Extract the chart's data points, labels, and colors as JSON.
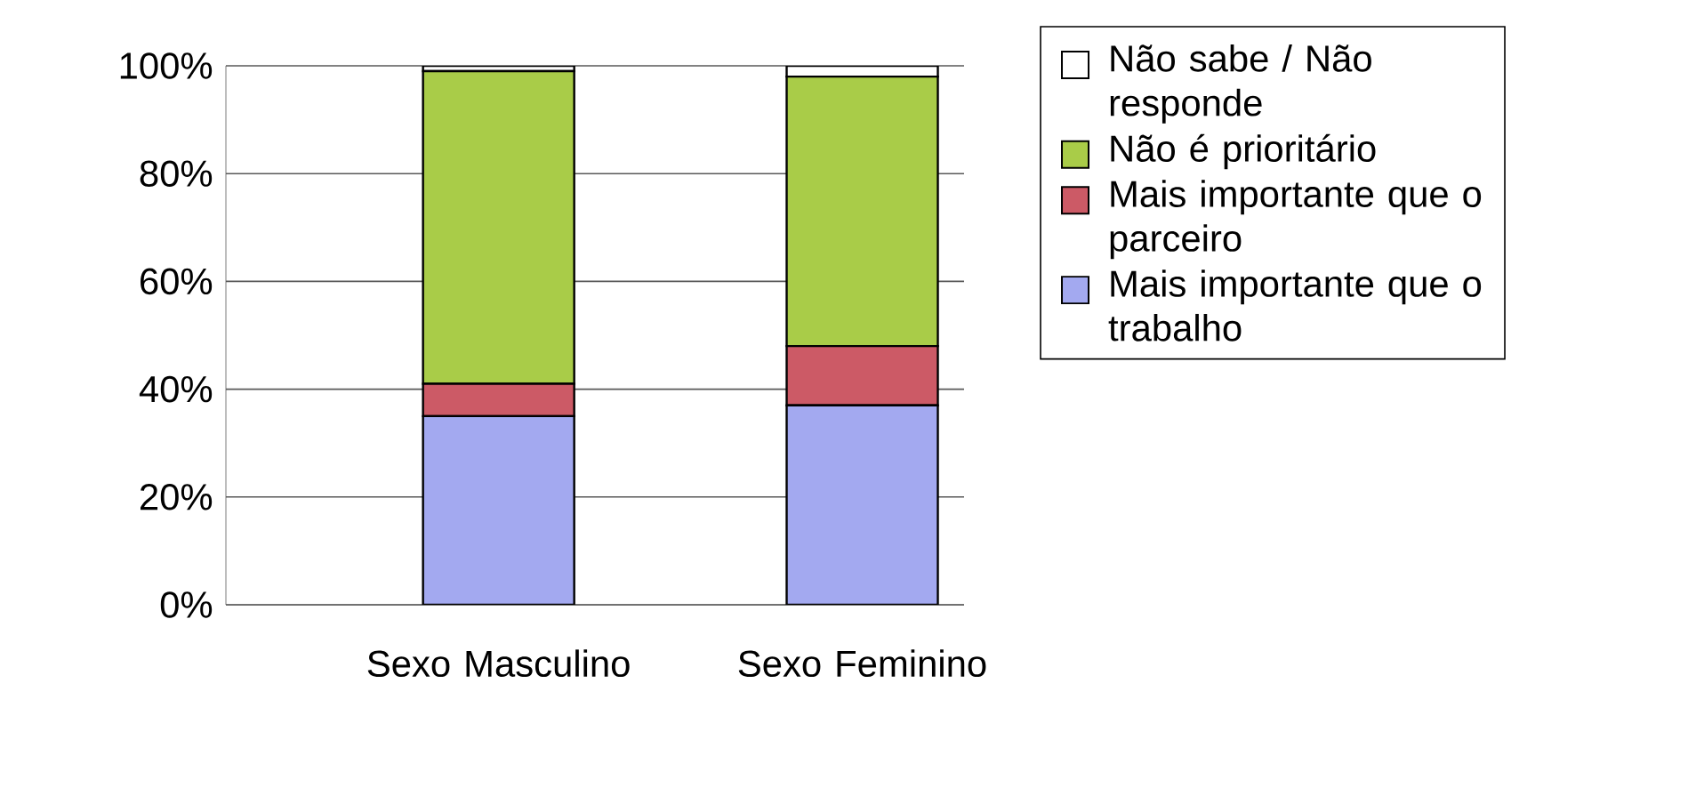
{
  "chart_data": {
    "type": "bar",
    "stacked": true,
    "categories": [
      "Sexo Masculino",
      "Sexo Feminino"
    ],
    "series": [
      {
        "name": "Mais importante que o trabalho",
        "color": "#a3a9f0",
        "values": [
          35,
          37
        ]
      },
      {
        "name": "Mais importante que o parceiro",
        "color": "#cc5a66",
        "values": [
          6,
          11
        ]
      },
      {
        "name": "Não é prioritário",
        "color": "#a9cc48",
        "values": [
          58,
          50
        ]
      },
      {
        "name": "Não sabe / Não responde",
        "color": "#ffffff",
        "values": [
          1,
          2
        ]
      }
    ],
    "ylim": [
      0,
      100
    ],
    "yticks": [
      {
        "value": 0,
        "label": "0%"
      },
      {
        "value": 20,
        "label": "20%"
      },
      {
        "value": 40,
        "label": "40%"
      },
      {
        "value": 60,
        "label": "60%"
      },
      {
        "value": 80,
        "label": "80%"
      },
      {
        "value": 100,
        "label": "100%"
      }
    ],
    "grid": "y",
    "legend": "right"
  }
}
